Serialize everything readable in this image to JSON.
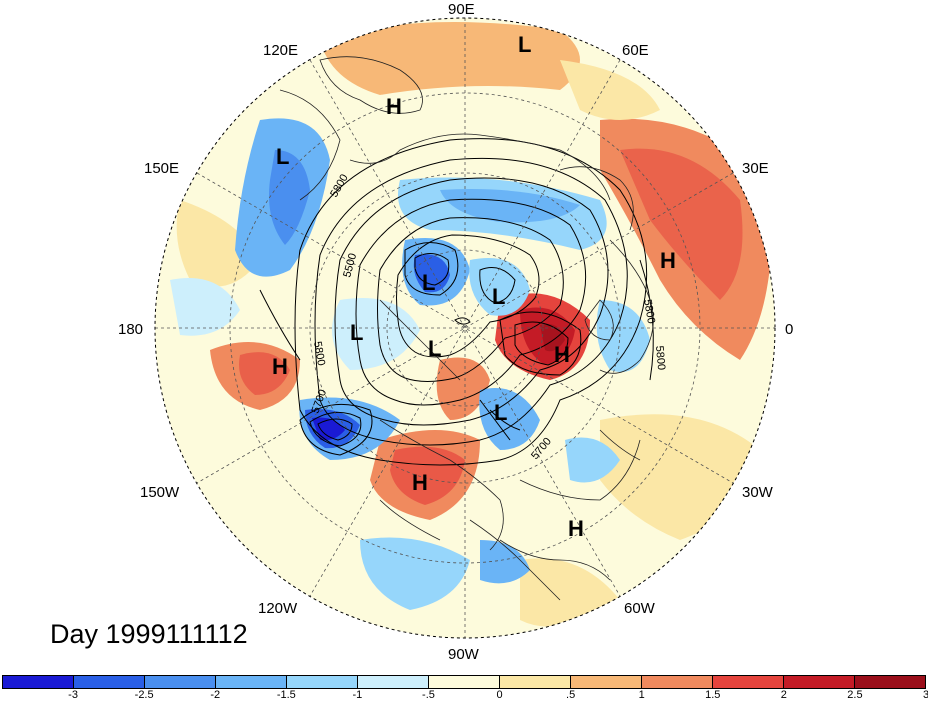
{
  "map": {
    "projection": "north-polar-stereographic",
    "lon_labels": {
      "north": "90E",
      "south": "90W",
      "east": "0",
      "west": "180",
      "ne": "60E",
      "ene": "30E",
      "nw": "120E",
      "wnw": "150E",
      "sw": "120W",
      "wsw": "150W",
      "se": "60W",
      "ese": "30W"
    },
    "contour_labels": {
      "c1": "5800",
      "c2": "5500",
      "c3": "5800",
      "c4": "5700",
      "c5": "5800",
      "c6": "5800",
      "c7": "5700"
    },
    "pressure_centers": {
      "p1": "L",
      "p2": "H",
      "p3": "L",
      "p4": "H",
      "p5": "L",
      "p6": "L",
      "p7": "L",
      "p8": "L",
      "p9": "H",
      "p10": "H",
      "p11": "L",
      "p12": "H",
      "p13": "H"
    }
  },
  "day_label": "Day 1999111112",
  "colorbar": {
    "colors": [
      "#1a1ad4",
      "#2a5fe6",
      "#4a8fef",
      "#6ab4f6",
      "#96d6fb",
      "#cdeffc",
      "#fdfbdc",
      "#fbe7a6",
      "#f7b877",
      "#f08a5e",
      "#e5443d",
      "#c41b26",
      "#9b0f1b"
    ],
    "ticks": [
      "-3",
      "-2.5",
      "-2",
      "-1.5",
      "-1",
      "-.5",
      "0",
      ".5",
      "1",
      "1.5",
      "2",
      "2.5",
      "3"
    ]
  }
}
